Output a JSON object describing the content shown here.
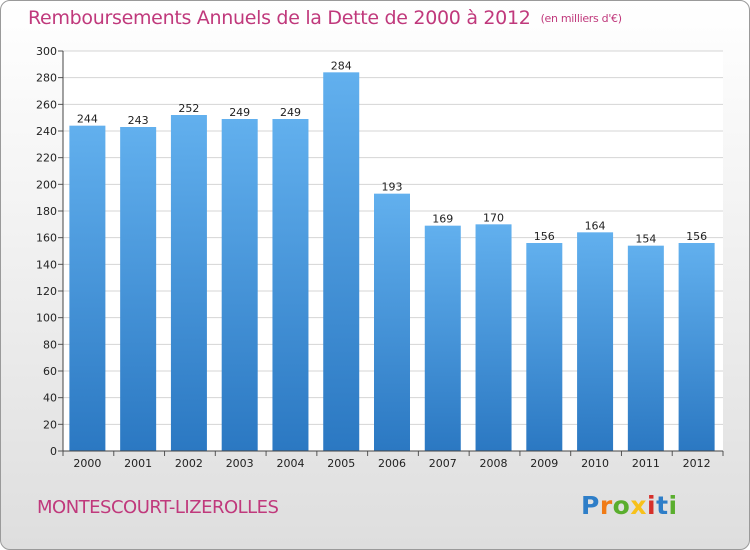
{
  "header": {
    "title": "Remboursements Annuels de la Dette de 2000 à 2012",
    "unit": "(en milliers d'€)"
  },
  "footer": {
    "municipality": "MONTESCOURT-LIZEROLLES",
    "logo": {
      "letters": [
        "P",
        "r",
        "o",
        "x",
        "i",
        "t",
        "i"
      ],
      "colors": [
        "#2e7ec8",
        "#f07b16",
        "#5aae2e",
        "#f7c11a",
        "#d6302a",
        "#2e7ec8",
        "#5aae2e"
      ]
    }
  },
  "chart_data": {
    "type": "bar",
    "title": "Remboursements Annuels de la Dette de 2000 à 2012",
    "xlabel": "",
    "ylabel": "",
    "categories": [
      "2000",
      "2001",
      "2002",
      "2003",
      "2004",
      "2005",
      "2006",
      "2007",
      "2008",
      "2009",
      "2010",
      "2011",
      "2012"
    ],
    "values": [
      244,
      243,
      252,
      249,
      249,
      284,
      193,
      169,
      170,
      156,
      164,
      154,
      156
    ],
    "ylim": [
      0,
      300
    ],
    "ytick_step": 20,
    "grid": true,
    "bar_color": "#3d8fd6",
    "bar_color_light": "#62b0ee",
    "grid_color": "#d4d4d4"
  }
}
